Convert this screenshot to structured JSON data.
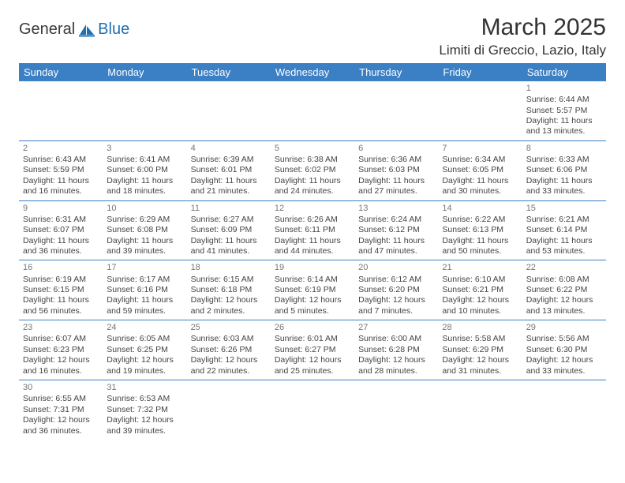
{
  "brand": {
    "part1": "General",
    "part2": "Blue"
  },
  "title": "March 2025",
  "location": "Limiti di Greccio, Lazio, Italy",
  "colors": {
    "header_bg": "#3b7fc4",
    "header_text": "#ffffff",
    "grid_line": "#3b7fc4",
    "body_text": "#444444",
    "daynum": "#777777",
    "background": "#ffffff"
  },
  "day_headers": [
    "Sunday",
    "Monday",
    "Tuesday",
    "Wednesday",
    "Thursday",
    "Friday",
    "Saturday"
  ],
  "weeks": [
    [
      null,
      null,
      null,
      null,
      null,
      null,
      {
        "n": "1",
        "sr": "Sunrise: 6:44 AM",
        "ss": "Sunset: 5:57 PM",
        "d1": "Daylight: 11 hours",
        "d2": "and 13 minutes."
      }
    ],
    [
      {
        "n": "2",
        "sr": "Sunrise: 6:43 AM",
        "ss": "Sunset: 5:59 PM",
        "d1": "Daylight: 11 hours",
        "d2": "and 16 minutes."
      },
      {
        "n": "3",
        "sr": "Sunrise: 6:41 AM",
        "ss": "Sunset: 6:00 PM",
        "d1": "Daylight: 11 hours",
        "d2": "and 18 minutes."
      },
      {
        "n": "4",
        "sr": "Sunrise: 6:39 AM",
        "ss": "Sunset: 6:01 PM",
        "d1": "Daylight: 11 hours",
        "d2": "and 21 minutes."
      },
      {
        "n": "5",
        "sr": "Sunrise: 6:38 AM",
        "ss": "Sunset: 6:02 PM",
        "d1": "Daylight: 11 hours",
        "d2": "and 24 minutes."
      },
      {
        "n": "6",
        "sr": "Sunrise: 6:36 AM",
        "ss": "Sunset: 6:03 PM",
        "d1": "Daylight: 11 hours",
        "d2": "and 27 minutes."
      },
      {
        "n": "7",
        "sr": "Sunrise: 6:34 AM",
        "ss": "Sunset: 6:05 PM",
        "d1": "Daylight: 11 hours",
        "d2": "and 30 minutes."
      },
      {
        "n": "8",
        "sr": "Sunrise: 6:33 AM",
        "ss": "Sunset: 6:06 PM",
        "d1": "Daylight: 11 hours",
        "d2": "and 33 minutes."
      }
    ],
    [
      {
        "n": "9",
        "sr": "Sunrise: 6:31 AM",
        "ss": "Sunset: 6:07 PM",
        "d1": "Daylight: 11 hours",
        "d2": "and 36 minutes."
      },
      {
        "n": "10",
        "sr": "Sunrise: 6:29 AM",
        "ss": "Sunset: 6:08 PM",
        "d1": "Daylight: 11 hours",
        "d2": "and 39 minutes."
      },
      {
        "n": "11",
        "sr": "Sunrise: 6:27 AM",
        "ss": "Sunset: 6:09 PM",
        "d1": "Daylight: 11 hours",
        "d2": "and 41 minutes."
      },
      {
        "n": "12",
        "sr": "Sunrise: 6:26 AM",
        "ss": "Sunset: 6:11 PM",
        "d1": "Daylight: 11 hours",
        "d2": "and 44 minutes."
      },
      {
        "n": "13",
        "sr": "Sunrise: 6:24 AM",
        "ss": "Sunset: 6:12 PM",
        "d1": "Daylight: 11 hours",
        "d2": "and 47 minutes."
      },
      {
        "n": "14",
        "sr": "Sunrise: 6:22 AM",
        "ss": "Sunset: 6:13 PM",
        "d1": "Daylight: 11 hours",
        "d2": "and 50 minutes."
      },
      {
        "n": "15",
        "sr": "Sunrise: 6:21 AM",
        "ss": "Sunset: 6:14 PM",
        "d1": "Daylight: 11 hours",
        "d2": "and 53 minutes."
      }
    ],
    [
      {
        "n": "16",
        "sr": "Sunrise: 6:19 AM",
        "ss": "Sunset: 6:15 PM",
        "d1": "Daylight: 11 hours",
        "d2": "and 56 minutes."
      },
      {
        "n": "17",
        "sr": "Sunrise: 6:17 AM",
        "ss": "Sunset: 6:16 PM",
        "d1": "Daylight: 11 hours",
        "d2": "and 59 minutes."
      },
      {
        "n": "18",
        "sr": "Sunrise: 6:15 AM",
        "ss": "Sunset: 6:18 PM",
        "d1": "Daylight: 12 hours",
        "d2": "and 2 minutes."
      },
      {
        "n": "19",
        "sr": "Sunrise: 6:14 AM",
        "ss": "Sunset: 6:19 PM",
        "d1": "Daylight: 12 hours",
        "d2": "and 5 minutes."
      },
      {
        "n": "20",
        "sr": "Sunrise: 6:12 AM",
        "ss": "Sunset: 6:20 PM",
        "d1": "Daylight: 12 hours",
        "d2": "and 7 minutes."
      },
      {
        "n": "21",
        "sr": "Sunrise: 6:10 AM",
        "ss": "Sunset: 6:21 PM",
        "d1": "Daylight: 12 hours",
        "d2": "and 10 minutes."
      },
      {
        "n": "22",
        "sr": "Sunrise: 6:08 AM",
        "ss": "Sunset: 6:22 PM",
        "d1": "Daylight: 12 hours",
        "d2": "and 13 minutes."
      }
    ],
    [
      {
        "n": "23",
        "sr": "Sunrise: 6:07 AM",
        "ss": "Sunset: 6:23 PM",
        "d1": "Daylight: 12 hours",
        "d2": "and 16 minutes."
      },
      {
        "n": "24",
        "sr": "Sunrise: 6:05 AM",
        "ss": "Sunset: 6:25 PM",
        "d1": "Daylight: 12 hours",
        "d2": "and 19 minutes."
      },
      {
        "n": "25",
        "sr": "Sunrise: 6:03 AM",
        "ss": "Sunset: 6:26 PM",
        "d1": "Daylight: 12 hours",
        "d2": "and 22 minutes."
      },
      {
        "n": "26",
        "sr": "Sunrise: 6:01 AM",
        "ss": "Sunset: 6:27 PM",
        "d1": "Daylight: 12 hours",
        "d2": "and 25 minutes."
      },
      {
        "n": "27",
        "sr": "Sunrise: 6:00 AM",
        "ss": "Sunset: 6:28 PM",
        "d1": "Daylight: 12 hours",
        "d2": "and 28 minutes."
      },
      {
        "n": "28",
        "sr": "Sunrise: 5:58 AM",
        "ss": "Sunset: 6:29 PM",
        "d1": "Daylight: 12 hours",
        "d2": "and 31 minutes."
      },
      {
        "n": "29",
        "sr": "Sunrise: 5:56 AM",
        "ss": "Sunset: 6:30 PM",
        "d1": "Daylight: 12 hours",
        "d2": "and 33 minutes."
      }
    ],
    [
      {
        "n": "30",
        "sr": "Sunrise: 6:55 AM",
        "ss": "Sunset: 7:31 PM",
        "d1": "Daylight: 12 hours",
        "d2": "and 36 minutes."
      },
      {
        "n": "31",
        "sr": "Sunrise: 6:53 AM",
        "ss": "Sunset: 7:32 PM",
        "d1": "Daylight: 12 hours",
        "d2": "and 39 minutes."
      },
      null,
      null,
      null,
      null,
      null
    ]
  ]
}
